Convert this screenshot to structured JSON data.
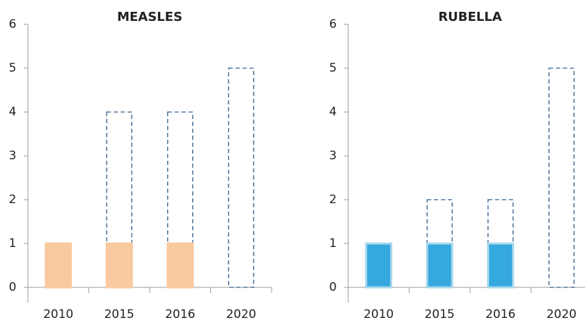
{
  "chart_data": [
    {
      "type": "bar",
      "title": "MEASLES",
      "categories": [
        "2010",
        "2015",
        "2016",
        "2020"
      ],
      "series": [
        {
          "color": "#f9c9a0",
          "edge": "#f9c9a0",
          "values": [
            1,
            1,
            1,
            null
          ]
        },
        {
          "color": "#2e5a8a",
          "style": "dashed",
          "values": [
            null,
            4,
            4,
            5
          ]
        }
      ],
      "ylim": [
        0,
        6
      ],
      "yticks": [
        0,
        1,
        2,
        3,
        4,
        5,
        6
      ]
    },
    {
      "type": "bar",
      "title": "RUBELLA",
      "categories": [
        "2010",
        "2015",
        "2016",
        "2020"
      ],
      "series": [
        {
          "color": "#35a8e0",
          "edge": "#a8d8ee",
          "values": [
            1,
            1,
            1,
            null
          ]
        },
        {
          "color": "#2e5a8a",
          "style": "dashed",
          "values": [
            null,
            2,
            2,
            5
          ]
        }
      ],
      "ylim": [
        0,
        6
      ],
      "yticks": [
        0,
        1,
        2,
        3,
        4,
        5,
        6
      ]
    }
  ]
}
